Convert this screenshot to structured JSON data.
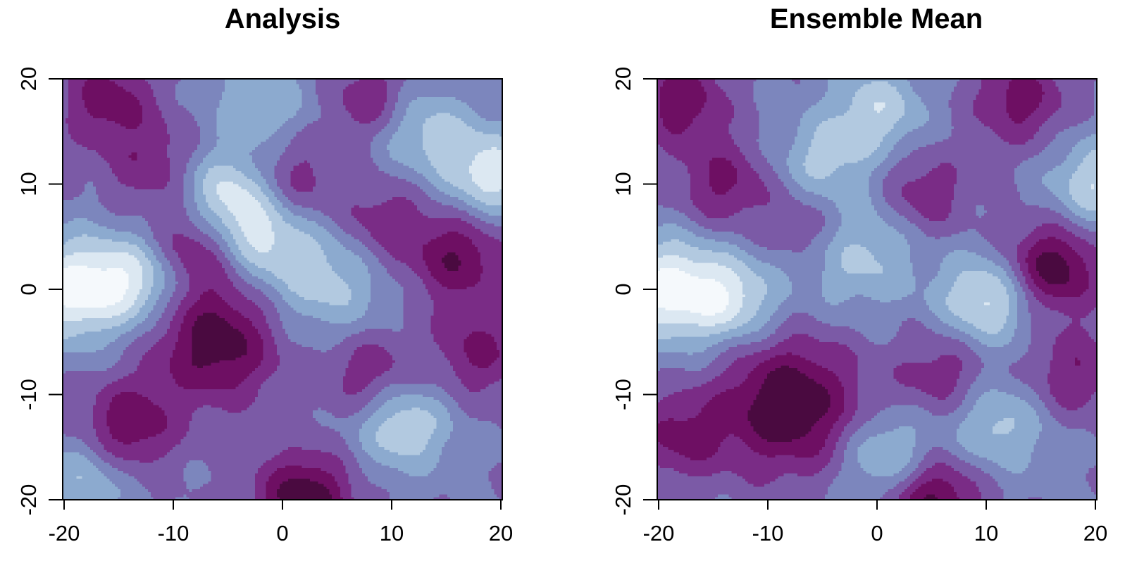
{
  "chart_data": [
    {
      "type": "heatmap",
      "title": "Analysis",
      "xlabel": "",
      "ylabel": "",
      "xlim": [
        -20,
        20
      ],
      "ylim": [
        -20,
        20
      ],
      "x_ticks": [
        "-20",
        "-10",
        "0",
        "10",
        "20"
      ],
      "y_ticks": [
        "-20",
        "-10",
        "0",
        "10",
        "20"
      ],
      "colormap": [
        "#4A0A40",
        "#6E0F63",
        "#7A2C86",
        "#7B5AA6",
        "#7C86BD",
        "#8CAACF",
        "#B2C9E0",
        "#DCE8F2",
        "#F5F9FC"
      ],
      "blobs": [
        {
          "x": -19,
          "y": 0,
          "v": 3.4,
          "s": 3.5
        },
        {
          "x": -13,
          "y": 1,
          "v": 2.4,
          "s": 3
        },
        {
          "x": -5,
          "y": 9,
          "v": 2.6,
          "s": 3
        },
        {
          "x": -2,
          "y": 5,
          "v": 2.2,
          "s": 3
        },
        {
          "x": 4,
          "y": 1,
          "v": 2.0,
          "s": 4
        },
        {
          "x": 11,
          "y": -13,
          "v": 2.4,
          "s": 3
        },
        {
          "x": 19,
          "y": 11,
          "v": 2.8,
          "s": 3
        },
        {
          "x": 13,
          "y": 15,
          "v": 1.8,
          "s": 3
        },
        {
          "x": -2,
          "y": 18,
          "v": 1.6,
          "s": 3
        },
        {
          "x": -18,
          "y": -18,
          "v": 1.6,
          "s": 3
        },
        {
          "x": -6,
          "y": -5,
          "v": -3.0,
          "s": 4
        },
        {
          "x": -14,
          "y": -13,
          "v": -2.4,
          "s": 3
        },
        {
          "x": -8,
          "y": 4,
          "v": -2.0,
          "s": 3
        },
        {
          "x": 2,
          "y": -20,
          "v": -3.2,
          "s": 3
        },
        {
          "x": 16,
          "y": 3,
          "v": -2.4,
          "s": 3
        },
        {
          "x": 9,
          "y": 6,
          "v": -1.6,
          "s": 3
        },
        {
          "x": -16,
          "y": 18,
          "v": -2.0,
          "s": 3
        },
        {
          "x": 18,
          "y": -6,
          "v": -1.8,
          "s": 3
        },
        {
          "x": 8,
          "y": -8,
          "v": -1.6,
          "s": 3
        },
        {
          "x": 1,
          "y": 10,
          "v": -1.5,
          "s": 3
        },
        {
          "x": -12,
          "y": 12,
          "v": -1.4,
          "s": 3
        },
        {
          "x": 8,
          "y": 18,
          "v": -1.6,
          "s": 2.5
        }
      ]
    },
    {
      "type": "heatmap",
      "title": "Ensemble Mean",
      "xlabel": "",
      "ylabel": "",
      "xlim": [
        -20,
        20
      ],
      "ylim": [
        -20,
        20
      ],
      "x_ticks": [
        "-20",
        "-10",
        "0",
        "10",
        "20"
      ],
      "y_ticks": [
        "-20",
        "-10",
        "0",
        "10",
        "20"
      ],
      "colormap": [
        "#4A0A40",
        "#6E0F63",
        "#7A2C86",
        "#7B5AA6",
        "#7C86BD",
        "#8CAACF",
        "#B2C9E0",
        "#DCE8F2",
        "#F5F9FC"
      ],
      "blobs": [
        {
          "x": -19,
          "y": 0,
          "v": 3.2,
          "s": 3.5
        },
        {
          "x": -13,
          "y": -1,
          "v": 2.2,
          "s": 3
        },
        {
          "x": -2,
          "y": 4,
          "v": 2.0,
          "s": 4
        },
        {
          "x": 10,
          "y": -1,
          "v": 2.6,
          "s": 3
        },
        {
          "x": 20,
          "y": 10,
          "v": 2.2,
          "s": 3
        },
        {
          "x": 0,
          "y": 17,
          "v": 2.0,
          "s": 3
        },
        {
          "x": -5,
          "y": 12,
          "v": 1.6,
          "s": 3
        },
        {
          "x": 1,
          "y": -16,
          "v": 2.0,
          "s": 3
        },
        {
          "x": 11,
          "y": -13,
          "v": 1.8,
          "s": 3
        },
        {
          "x": -8,
          "y": -11,
          "v": -3.2,
          "s": 4.5
        },
        {
          "x": 16,
          "y": 2,
          "v": -3.0,
          "s": 3
        },
        {
          "x": 5,
          "y": -20,
          "v": -2.8,
          "s": 3
        },
        {
          "x": -18,
          "y": 18,
          "v": -2.2,
          "s": 3
        },
        {
          "x": -14,
          "y": 10,
          "v": -1.8,
          "s": 3
        },
        {
          "x": 4,
          "y": 9,
          "v": -1.6,
          "s": 3
        },
        {
          "x": 13,
          "y": 18,
          "v": -2.0,
          "s": 3
        },
        {
          "x": -6,
          "y": 6,
          "v": -1.6,
          "s": 3
        },
        {
          "x": 18,
          "y": -8,
          "v": -1.6,
          "s": 3
        },
        {
          "x": -18,
          "y": -14,
          "v": -1.8,
          "s": 3
        },
        {
          "x": 6,
          "y": -8,
          "v": -1.4,
          "s": 3
        }
      ]
    }
  ]
}
